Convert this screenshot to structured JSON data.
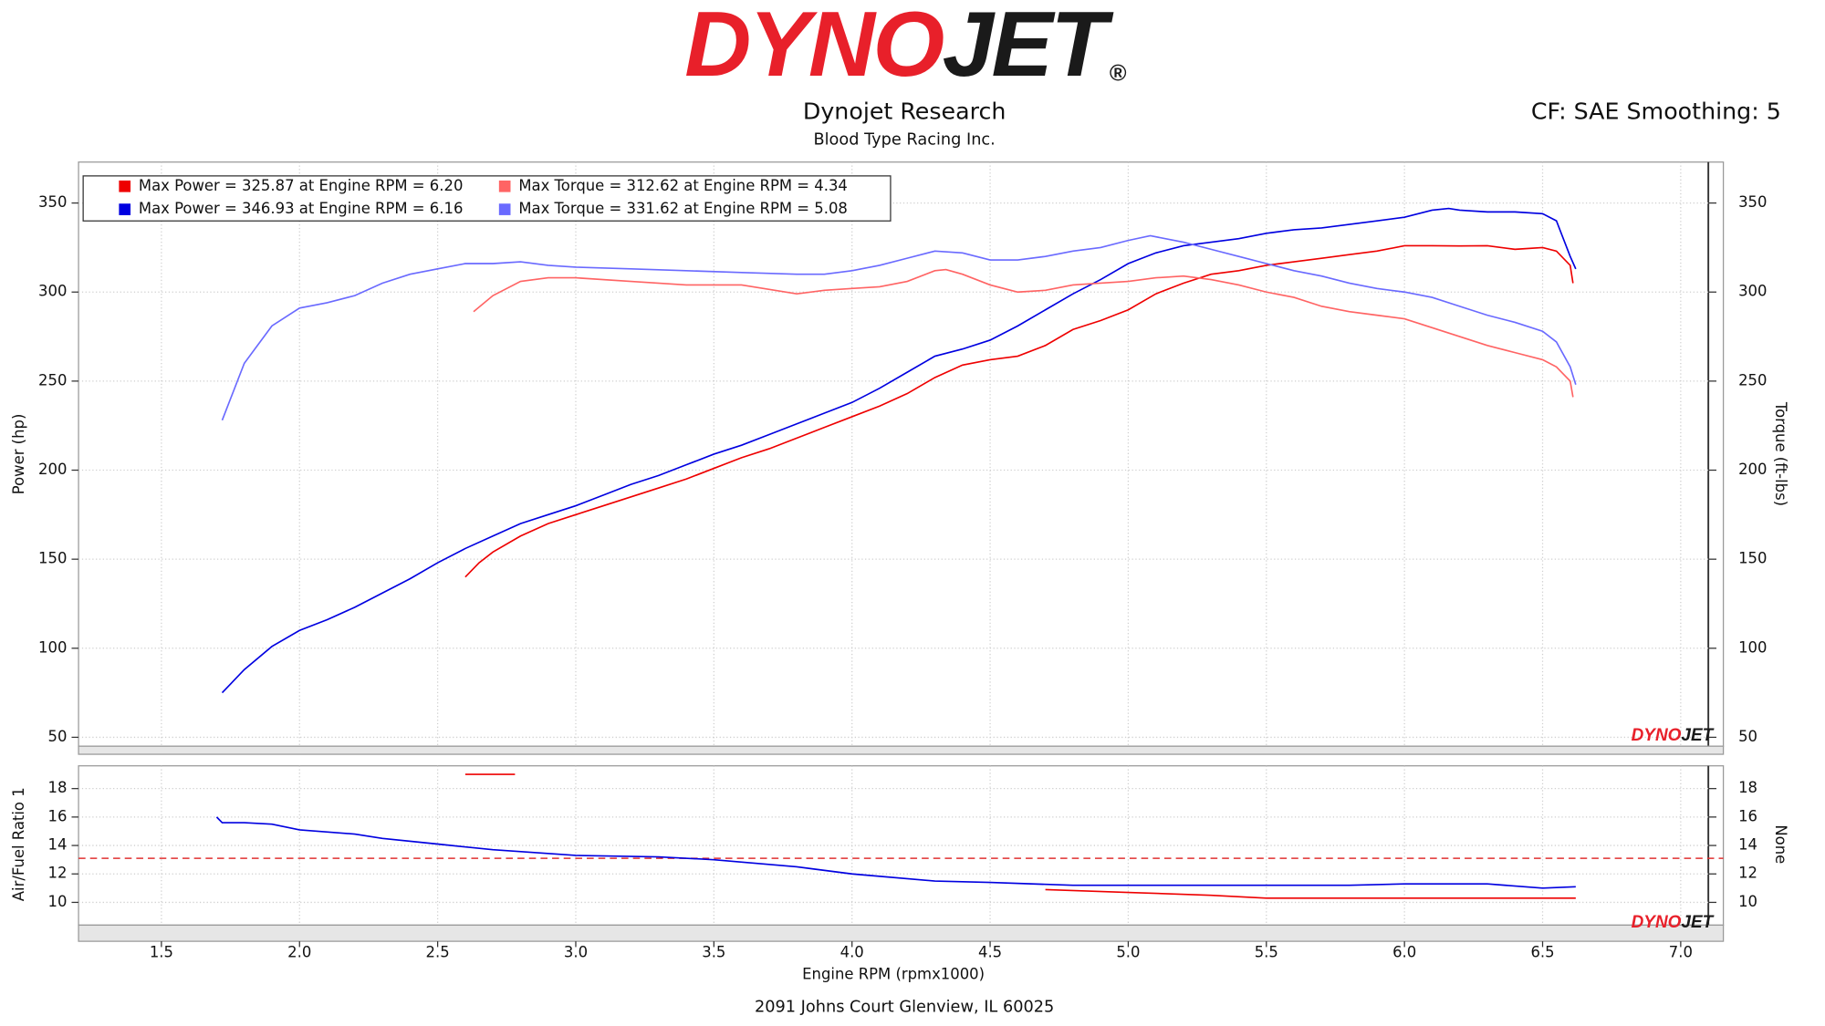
{
  "header": {
    "logo": {
      "left": "DYNO",
      "right": "JET",
      "mark": "®"
    },
    "title": "Dynojet Research",
    "subtitle": "Blood Type Racing Inc.",
    "settings": "CF: SAE Smoothing: 5"
  },
  "chart_data": [
    {
      "type": "line",
      "ylabel": "Power (hp)",
      "y2label": "Torque (ft-lbs)",
      "xlim": [
        1.2,
        7.1
      ],
      "ylim": [
        45,
        373
      ],
      "y2lim": [
        45,
        373
      ],
      "yticks": [
        50,
        100,
        150,
        200,
        250,
        300,
        350
      ],
      "y2ticks": [
        50,
        100,
        150,
        200,
        250,
        300,
        350
      ],
      "grid": true,
      "series": [
        {
          "name": "Max Power = 325.87 at Engine RPM = 6.20",
          "color": "#ee0000",
          "x": [
            2.6,
            2.65,
            2.7,
            2.8,
            2.9,
            3.0,
            3.1,
            3.2,
            3.3,
            3.4,
            3.5,
            3.6,
            3.7,
            3.8,
            3.9,
            4.0,
            4.1,
            4.2,
            4.3,
            4.4,
            4.5,
            4.6,
            4.7,
            4.8,
            4.9,
            5.0,
            5.1,
            5.2,
            5.3,
            5.4,
            5.5,
            5.6,
            5.7,
            5.8,
            5.9,
            6.0,
            6.1,
            6.2,
            6.3,
            6.4,
            6.5,
            6.55,
            6.6,
            6.61
          ],
          "values": [
            140,
            148,
            154,
            163,
            170,
            175,
            180,
            185,
            190,
            195,
            201,
            207,
            212,
            218,
            224,
            230,
            236,
            243,
            252,
            259,
            262,
            264,
            270,
            279,
            284,
            290,
            299,
            305,
            310,
            312,
            315,
            317,
            319,
            321,
            323,
            326,
            326,
            325.87,
            326,
            324,
            325,
            323,
            315,
            305
          ]
        },
        {
          "name": "Max Power = 346.93 at Engine RPM = 6.16",
          "color": "#0000e0",
          "x": [
            1.72,
            1.8,
            1.9,
            2.0,
            2.1,
            2.2,
            2.3,
            2.4,
            2.5,
            2.6,
            2.7,
            2.8,
            2.9,
            3.0,
            3.1,
            3.2,
            3.3,
            3.4,
            3.5,
            3.6,
            3.7,
            3.8,
            3.9,
            4.0,
            4.1,
            4.2,
            4.3,
            4.4,
            4.5,
            4.6,
            4.7,
            4.8,
            4.9,
            5.0,
            5.1,
            5.2,
            5.3,
            5.4,
            5.5,
            5.6,
            5.7,
            5.8,
            5.9,
            6.0,
            6.1,
            6.16,
            6.2,
            6.3,
            6.4,
            6.5,
            6.55,
            6.6,
            6.62
          ],
          "values": [
            75,
            88,
            101,
            110,
            116,
            123,
            131,
            139,
            148,
            156,
            163,
            170,
            175,
            180,
            186,
            192,
            197,
            203,
            209,
            214,
            220,
            226,
            232,
            238,
            246,
            255,
            264,
            268,
            273,
            281,
            290,
            299,
            307,
            316,
            322,
            326,
            328,
            330,
            333,
            335,
            336,
            338,
            340,
            342,
            346,
            346.93,
            346,
            345,
            345,
            344,
            340,
            320,
            313
          ]
        },
        {
          "name": "Max Torque = 312.62 at Engine RPM = 4.34",
          "color": "#ff6464",
          "axis": "y2",
          "x": [
            2.63,
            2.7,
            2.8,
            2.9,
            3.0,
            3.2,
            3.4,
            3.6,
            3.8,
            3.9,
            4.0,
            4.1,
            4.2,
            4.3,
            4.34,
            4.4,
            4.5,
            4.6,
            4.7,
            4.8,
            4.9,
            5.0,
            5.1,
            5.2,
            5.3,
            5.4,
            5.5,
            5.6,
            5.7,
            5.8,
            5.9,
            6.0,
            6.1,
            6.2,
            6.3,
            6.4,
            6.5,
            6.55,
            6.6,
            6.61
          ],
          "values": [
            289,
            298,
            306,
            308,
            308,
            306,
            304,
            304,
            299,
            301,
            302,
            303,
            306,
            312,
            312.62,
            310,
            304,
            300,
            301,
            304,
            305,
            306,
            308,
            309,
            307,
            304,
            300,
            297,
            292,
            289,
            287,
            285,
            280,
            275,
            270,
            266,
            262,
            258,
            250,
            241
          ]
        },
        {
          "name": "Max Torque = 331.62 at Engine RPM = 5.08",
          "color": "#6a6aff",
          "axis": "y2",
          "x": [
            1.72,
            1.8,
            1.9,
            2.0,
            2.1,
            2.2,
            2.3,
            2.4,
            2.5,
            2.6,
            2.7,
            2.8,
            2.9,
            3.0,
            3.2,
            3.4,
            3.6,
            3.8,
            3.9,
            4.0,
            4.1,
            4.2,
            4.3,
            4.4,
            4.5,
            4.6,
            4.7,
            4.8,
            4.9,
            5.0,
            5.08,
            5.2,
            5.3,
            5.4,
            5.5,
            5.6,
            5.7,
            5.8,
            5.9,
            6.0,
            6.1,
            6.2,
            6.3,
            6.4,
            6.5,
            6.55,
            6.6,
            6.62
          ],
          "values": [
            228,
            260,
            281,
            291,
            294,
            298,
            305,
            310,
            313,
            316,
            316,
            317,
            315,
            314,
            313,
            312,
            311,
            310,
            310,
            312,
            315,
            319,
            323,
            322,
            318,
            318,
            320,
            323,
            325,
            329,
            331.62,
            328,
            324,
            320,
            316,
            312,
            309,
            305,
            302,
            300,
            297,
            292,
            287,
            283,
            278,
            272,
            258,
            248
          ]
        }
      ]
    },
    {
      "type": "line",
      "ylabel": "Air/Fuel Ratio 1",
      "y2label": "None",
      "xlabel": "Engine RPM (rpmx1000)",
      "xlim": [
        1.2,
        7.1
      ],
      "ylim": [
        8.4,
        19.6
      ],
      "y2lim": [
        8.4,
        19.6
      ],
      "xticks": [
        1.5,
        {
          "value": 2,
          "label": "2.0"
        },
        2.5,
        {
          "value": 3,
          "label": "3.0"
        },
        3.5,
        {
          "value": 4,
          "label": "4.0"
        },
        4.5,
        {
          "value": 5,
          "label": "5.0"
        },
        5.5,
        {
          "value": 6,
          "label": "6.0"
        },
        6.5,
        {
          "value": 7,
          "label": "7.0"
        }
      ],
      "yticks": [
        10,
        12,
        14,
        16,
        18
      ],
      "y2ticks": [
        10,
        12,
        14,
        16,
        18
      ],
      "grid": true,
      "reference_line": {
        "value": 13.1,
        "color": "#e03030"
      },
      "series": [
        {
          "color": "#ee0000",
          "x": [
            2.6,
            2.7,
            2.78,
            3.5,
            4.7,
            5.0,
            5.3,
            5.5,
            6.0,
            6.5,
            6.62
          ],
          "values": [
            19.0,
            19.0,
            19.0,
            null,
            10.9,
            10.7,
            10.5,
            10.3,
            10.3,
            10.3,
            10.3
          ]
        },
        {
          "color": "#0000e0",
          "x": [
            1.7,
            1.72,
            1.8,
            1.9,
            2.0,
            2.2,
            2.3,
            2.5,
            2.7,
            3.0,
            3.3,
            3.5,
            3.8,
            4.0,
            4.3,
            4.5,
            4.8,
            5.0,
            5.3,
            5.5,
            5.8,
            6.0,
            6.3,
            6.5,
            6.62
          ],
          "values": [
            16.0,
            15.6,
            15.6,
            15.5,
            15.1,
            14.8,
            14.5,
            14.1,
            13.7,
            13.3,
            13.2,
            13.0,
            12.5,
            12.0,
            11.5,
            11.4,
            11.2,
            11.2,
            11.2,
            11.2,
            11.2,
            11.3,
            11.3,
            11.0,
            11.1
          ]
        }
      ]
    }
  ],
  "footer": "2091 Johns Court Glenview, IL 60025"
}
